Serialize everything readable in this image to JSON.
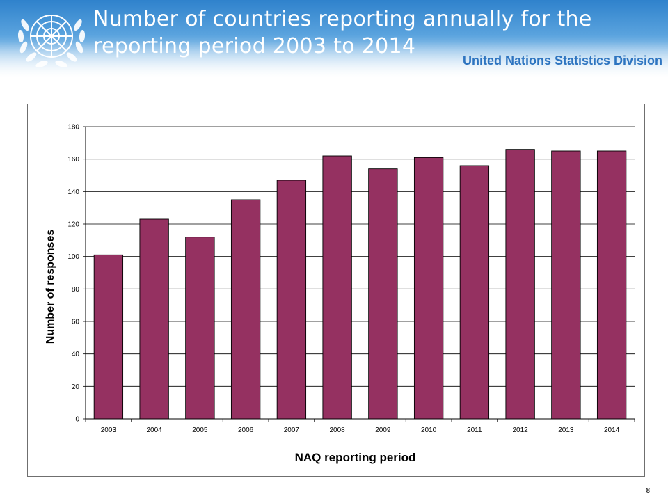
{
  "slide": {
    "title_line1": "Number of countries reporting annually for the",
    "title_line2": "reporting period 2003 to 2014",
    "organization": "United Nations Statistics Division",
    "logo_icon": "un-emblem-icon",
    "page_number": "8"
  },
  "colors": {
    "banner_top": "#2f82cc",
    "title_text": "#ffffff",
    "organization_text": "#2d74c0",
    "bar_fill": "#953161"
  },
  "chart_data": {
    "type": "bar",
    "categories": [
      "2003",
      "2004",
      "2005",
      "2006",
      "2007",
      "2008",
      "2009",
      "2010",
      "2011",
      "2012",
      "2013",
      "2014"
    ],
    "values": [
      101,
      123,
      112,
      135,
      147,
      162,
      154,
      161,
      156,
      166,
      165,
      165
    ],
    "title": "",
    "xlabel": "NAQ reporting period",
    "ylabel": "Number of responses",
    "ylim": [
      0,
      180
    ],
    "yticks": [
      "0",
      "20",
      "40",
      "60",
      "80",
      "100",
      "120",
      "140",
      "160",
      "180"
    ],
    "grid": true,
    "legend": "none"
  }
}
